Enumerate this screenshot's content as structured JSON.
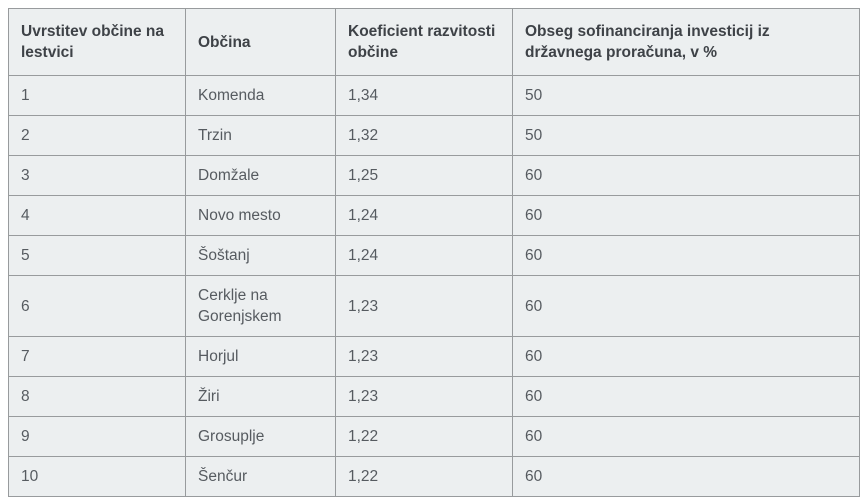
{
  "table": {
    "columns": [
      {
        "label": "Uvrstitev občine na lestvici"
      },
      {
        "label": "Občina"
      },
      {
        "label": "Koeficient razvitosti občine"
      },
      {
        "label": "Obseg sofinanciranja investicij iz državnega proračuna, v %"
      }
    ],
    "rows": [
      {
        "rank": "1",
        "municipality": "Komenda",
        "coefficient": "1,34",
        "cofinancing_pct": "50"
      },
      {
        "rank": "2",
        "municipality": "Trzin",
        "coefficient": "1,32",
        "cofinancing_pct": "50"
      },
      {
        "rank": "3",
        "municipality": "Domžale",
        "coefficient": "1,25",
        "cofinancing_pct": "60"
      },
      {
        "rank": "4",
        "municipality": "Novo mesto",
        "coefficient": "1,24",
        "cofinancing_pct": "60"
      },
      {
        "rank": "5",
        "municipality": "Šoštanj",
        "coefficient": "1,24",
        "cofinancing_pct": "60"
      },
      {
        "rank": "6",
        "municipality": "Cerklje na Gorenjskem",
        "coefficient": "1,23",
        "cofinancing_pct": "60"
      },
      {
        "rank": "7",
        "municipality": "Horjul",
        "coefficient": "1,23",
        "cofinancing_pct": "60"
      },
      {
        "rank": "8",
        "municipality": "Žiri",
        "coefficient": "1,23",
        "cofinancing_pct": "60"
      },
      {
        "rank": "9",
        "municipality": "Grosuplje",
        "coefficient": "1,22",
        "cofinancing_pct": "60"
      },
      {
        "rank": "10",
        "municipality": "Šenčur",
        "coefficient": "1,22",
        "cofinancing_pct": "60"
      }
    ]
  },
  "colors": {
    "cell_background": "#eceff0",
    "border": "#989b9d",
    "header_text": "#3e4247",
    "body_text": "#565b60",
    "page_background": "#ffffff"
  }
}
